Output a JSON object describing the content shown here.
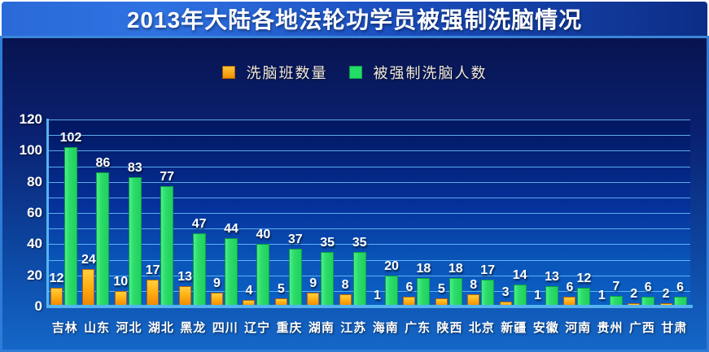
{
  "title": "2013年大陆各地法轮功学员被强制洗脑情况",
  "colors": {
    "title_bar_left": "#2a6ad8",
    "title_bar_right": "#0c2d86",
    "panel_border": "#2e7cd6",
    "axis": "#55b4f0",
    "gridline": "#6ec3ff",
    "orange_bar": "#ffb011",
    "green_bar": "#22dd66",
    "label_text": "#ffffff"
  },
  "legend": {
    "items": [
      {
        "label": "洗脑班数量",
        "color": "#ffb011"
      },
      {
        "label": "被强制洗脑人数",
        "color": "#22dd66"
      }
    ]
  },
  "chart_data": {
    "type": "bar",
    "title": "2013年大陆各地法轮功学员被强制洗脑情况",
    "xlabel": "",
    "ylabel": "",
    "ylim": [
      0,
      120
    ],
    "ytick_step": 20,
    "grid_step": 10,
    "yticks": [
      "0",
      "20",
      "40",
      "60",
      "80",
      "100",
      "120"
    ],
    "grid": true,
    "legend_position": "top-center",
    "categories": [
      "吉林",
      "山东",
      "河北",
      "湖北",
      "黑龙",
      "四川",
      "辽宁",
      "重庆",
      "湖南",
      "江苏",
      "海南",
      "广东",
      "陕西",
      "北京",
      "新疆",
      "安徽",
      "河南",
      "贵州",
      "广西",
      "甘肃"
    ],
    "series": [
      {
        "name": "洗脑班数量",
        "color": "#ffb011",
        "values": [
          12,
          24,
          10,
          17,
          13,
          9,
          4,
          5,
          9,
          8,
          1,
          6,
          5,
          8,
          3,
          1,
          6,
          1,
          2,
          2
        ]
      },
      {
        "name": "被强制洗脑人数",
        "color": "#22dd66",
        "values": [
          102,
          86,
          83,
          77,
          47,
          44,
          40,
          37,
          35,
          35,
          20,
          18,
          18,
          17,
          14,
          13,
          12,
          7,
          6,
          6
        ]
      }
    ]
  }
}
